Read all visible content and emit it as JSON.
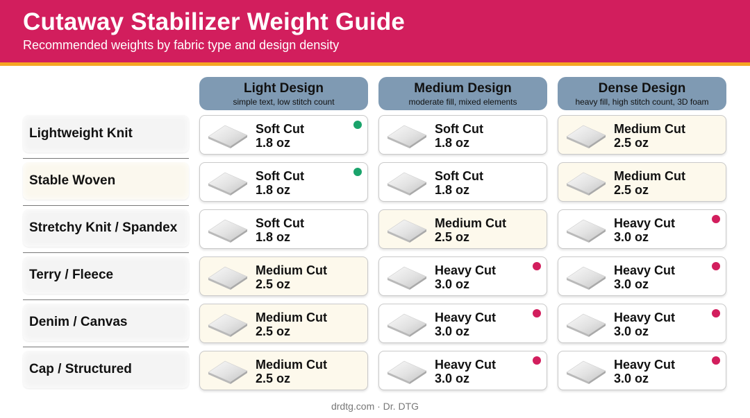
{
  "header": {
    "title": "Cutaway Stabilizer Weight Guide",
    "subtitle": "Recommended weights by fabric type and design density"
  },
  "columns": [
    {
      "title": "Light Design",
      "subtitle": "simple text, low stitch count"
    },
    {
      "title": "Medium Design",
      "subtitle": "moderate fill, mixed elements"
    },
    {
      "title": "Dense Design",
      "subtitle": "heavy fill, high stitch count, 3D foam"
    }
  ],
  "rows": [
    {
      "label": "Stable Woven",
      "cells": []
    }
  ],
  "table": {
    "rows": [
      {
        "label": "Lightweight Knit",
        "cells": [
          {
            "name": "Soft Cut",
            "weight": "1.8 oz",
            "dot": "green"
          },
          {
            "name": "Soft Cut",
            "weight": "1.8 oz",
            "dot": ""
          },
          {
            "name": "Medium Cut",
            "weight": "2.5 oz",
            "dot": ""
          }
        ]
      },
      {
        "label": "Stable Woven",
        "cells": [
          {
            "name": "Soft Cut",
            "weight": "1.8 oz",
            "dot": "green"
          },
          {
            "name": "Soft Cut",
            "weight": "1.8 oz",
            "dot": ""
          },
          {
            "name": "Medium Cut",
            "weight": "2.5 oz",
            "dot": ""
          }
        ]
      },
      {
        "label": "Stretchy Knit / Spandex",
        "cells": [
          {
            "name": "Soft Cut",
            "weight": "1.8 oz",
            "dot": ""
          },
          {
            "name": "Medium Cut",
            "weight": "2.5 oz",
            "dot": ""
          },
          {
            "name": "Heavy Cut",
            "weight": "3.0 oz",
            "dot": "red"
          }
        ]
      },
      {
        "label": "Terry / Fleece",
        "cells": [
          {
            "name": "Medium Cut",
            "weight": "2.5 oz",
            "dot": ""
          },
          {
            "name": "Heavy Cut",
            "weight": "3.0 oz",
            "dot": "red"
          },
          {
            "name": "Heavy Cut",
            "weight": "3.0 oz",
            "dot": "red"
          }
        ]
      },
      {
        "label": "Denim / Canvas",
        "cells": [
          {
            "name": "Medium Cut",
            "weight": "2.5 oz",
            "dot": ""
          },
          {
            "name": "Heavy Cut",
            "weight": "3.0 oz",
            "dot": "red"
          },
          {
            "name": "Heavy Cut",
            "weight": "3.0 oz",
            "dot": "red"
          }
        ]
      },
      {
        "label": "Cap / Structured",
        "cells": [
          {
            "name": "Medium Cut",
            "weight": "2.5 oz",
            "dot": ""
          },
          {
            "name": "Heavy Cut",
            "weight": "3.0 oz",
            "dot": "red"
          },
          {
            "name": "Heavy Cut",
            "weight": "3.0 oz",
            "dot": "red"
          }
        ]
      }
    ]
  },
  "footer": {
    "credit": "drdtg.com · Dr. DTG"
  },
  "colors": {
    "brand": "#d21e5d",
    "accent_stripe": "#f5a623",
    "column_header": "#7f9ab3",
    "dot_green": "#1aa36b",
    "dot_red": "#d21e5d",
    "medium_cell_tint": "#fdf9ec"
  },
  "icons": {
    "cell_swatch": "fabric-swatch-icon"
  }
}
